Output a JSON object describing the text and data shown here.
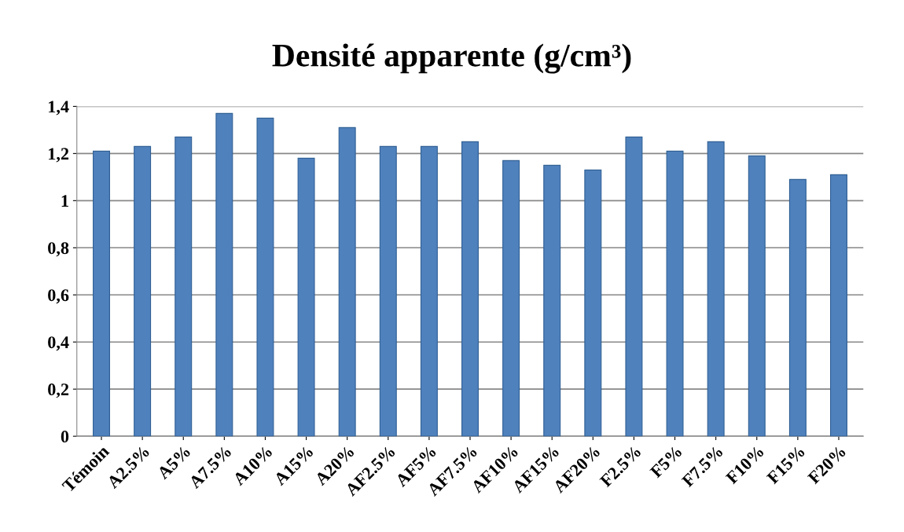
{
  "chart_data": {
    "type": "bar",
    "title": "Densité apparente (g/cm³)",
    "categories": [
      "Témoin",
      "A2.5%",
      "A5%",
      "A7.5%",
      "A10%",
      "A15%",
      "A20%",
      "AF2.5%",
      "AF5%",
      "AF7.5%",
      "AF10%",
      "AF15%",
      "AF20%",
      "F2.5%",
      "F5%",
      "F7.5%",
      "F10%",
      "F15%",
      "F20%"
    ],
    "values": [
      1.21,
      1.23,
      1.27,
      1.37,
      1.35,
      1.18,
      1.31,
      1.23,
      1.23,
      1.25,
      1.17,
      1.15,
      1.13,
      1.27,
      1.21,
      1.25,
      1.19,
      1.09,
      1.11
    ],
    "color": "#4f81bd",
    "ylim": [
      0,
      1.4
    ],
    "yticks": [
      0,
      {
        "value": 0.2,
        "label": "0,2"
      },
      {
        "value": 0.4,
        "label": "0,4"
      },
      {
        "value": 0.6,
        "label": "0,6"
      },
      {
        "value": 0.8,
        "label": "0,8"
      },
      1,
      {
        "value": 1.2,
        "label": "1,2"
      },
      {
        "value": 1.4,
        "label": "1,4"
      }
    ],
    "grid": "y",
    "legend": false
  }
}
